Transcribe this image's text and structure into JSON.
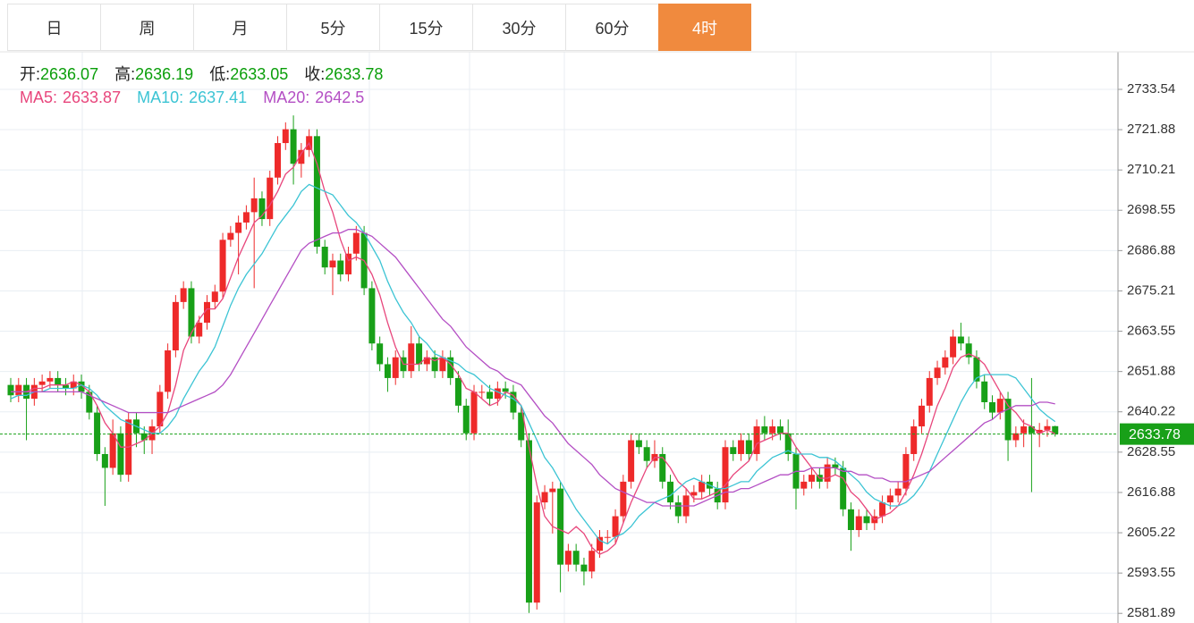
{
  "tabs": {
    "items": [
      "日",
      "周",
      "月",
      "5分",
      "15分",
      "30分",
      "60分",
      "4时"
    ],
    "active": 7
  },
  "chart_data": {
    "type": "candlestick",
    "info_labels": [
      "开:",
      "高:",
      "低:",
      "收:"
    ],
    "up_color": "#ee2a2a",
    "down_color": "#18a018",
    "ylim": [
      2579.1,
      2744.4
    ],
    "yticks": [
      2581.89,
      2593.55,
      2605.22,
      2616.88,
      2628.55,
      2640.22,
      2651.88,
      2663.55,
      2675.21,
      2686.88,
      2698.55,
      2710.21,
      2721.88,
      2733.54
    ],
    "grid": true,
    "open": [
      2648,
      2645,
      2648,
      2644,
      2648,
      2649,
      2650,
      2648,
      2647,
      2649,
      2646,
      2640,
      2628,
      2624,
      2634,
      2622,
      2638,
      2634,
      2632,
      2636,
      2646,
      2658,
      2672,
      2676,
      2662,
      2666,
      2672,
      2675,
      2690,
      2692,
      2695,
      2698,
      2702,
      2696,
      2708,
      2718,
      2722,
      2712,
      2716,
      2720,
      2688,
      2682,
      2684,
      2680,
      2686,
      2692,
      2676,
      2660,
      2654,
      2650,
      2656,
      2652,
      2660,
      2654,
      2656,
      2652,
      2656,
      2650,
      2642,
      2634,
      2646,
      2646,
      2644,
      2647,
      2646,
      2640,
      2632,
      2585,
      2614,
      2617,
      2618,
      2596,
      2600,
      2596,
      2594,
      2600,
      2604,
      2604,
      2610,
      2620,
      2632,
      2630,
      2626,
      2628,
      2620,
      2614,
      2610,
      2616,
      2617,
      2620,
      2618,
      2614,
      2630,
      2628,
      2632,
      2628,
      2636,
      2634,
      2636,
      2634,
      2628,
      2618,
      2620,
      2622,
      2620,
      2625,
      2624,
      2612,
      2606,
      2610,
      2608,
      2610,
      2614,
      2616,
      2618,
      2628,
      2636,
      2642,
      2650,
      2653,
      2656,
      2662,
      2660,
      2656,
      2649,
      2643,
      2640,
      2644,
      2632,
      2634,
      2636,
      2634,
      2635,
      2636.07
    ],
    "high": [
      2650,
      2650,
      2650,
      2650,
      2651,
      2652,
      2652,
      2650,
      2651,
      2651,
      2648,
      2642,
      2630,
      2638,
      2636,
      2640,
      2640,
      2636,
      2638,
      2648,
      2660,
      2674,
      2678,
      2678,
      2668,
      2674,
      2677,
      2692,
      2694,
      2697,
      2700,
      2708,
      2704,
      2710,
      2720,
      2724,
      2726,
      2718,
      2722,
      2722,
      2690,
      2686,
      2686,
      2688,
      2694,
      2694,
      2678,
      2662,
      2656,
      2658,
      2658,
      2665,
      2662,
      2658,
      2658,
      2658,
      2658,
      2652,
      2644,
      2648,
      2648,
      2648,
      2649,
      2649,
      2648,
      2642,
      2634,
      2616,
      2619,
      2620,
      2620,
      2602,
      2602,
      2598,
      2602,
      2606,
      2606,
      2612,
      2622,
      2634,
      2634,
      2632,
      2632,
      2630,
      2622,
      2616,
      2618,
      2619,
      2622,
      2622,
      2620,
      2632,
      2632,
      2634,
      2634,
      2638,
      2639,
      2638,
      2638,
      2638,
      2630,
      2622,
      2624,
      2624,
      2627,
      2627,
      2626,
      2614,
      2612,
      2612,
      2612,
      2616,
      2618,
      2620,
      2630,
      2638,
      2644,
      2652,
      2655,
      2658,
      2664,
      2666,
      2662,
      2658,
      2651,
      2645,
      2646,
      2646,
      2636,
      2638,
      2650,
      2637,
      2638,
      2636.19
    ],
    "low": [
      2643,
      2643,
      2632,
      2642,
      2646,
      2647,
      2646,
      2645,
      2645,
      2644,
      2638,
      2626,
      2613,
      2622,
      2620,
      2620,
      2630,
      2628,
      2628,
      2634,
      2644,
      2656,
      2670,
      2660,
      2660,
      2664,
      2670,
      2673,
      2688,
      2680,
      2693,
      2676,
      2694,
      2694,
      2706,
      2716,
      2706,
      2708,
      2714,
      2686,
      2680,
      2674,
      2678,
      2678,
      2684,
      2674,
      2658,
      2652,
      2646,
      2648,
      2650,
      2650,
      2652,
      2652,
      2650,
      2650,
      2648,
      2640,
      2632,
      2632,
      2644,
      2642,
      2642,
      2644,
      2638,
      2630,
      2582,
      2583,
      2612,
      2605,
      2588,
      2594,
      2594,
      2590,
      2592,
      2598,
      2602,
      2602,
      2608,
      2618,
      2628,
      2624,
      2624,
      2618,
      2612,
      2608,
      2608,
      2614,
      2615,
      2616,
      2612,
      2612,
      2626,
      2626,
      2626,
      2626,
      2632,
      2632,
      2632,
      2626,
      2612,
      2616,
      2618,
      2618,
      2618,
      2622,
      2610,
      2600,
      2604,
      2606,
      2606,
      2608,
      2612,
      2614,
      2616,
      2626,
      2634,
      2640,
      2648,
      2651,
      2654,
      2658,
      2654,
      2647,
      2641,
      2638,
      2638,
      2626,
      2630,
      2630,
      2617,
      2630,
      2633,
      2633.05
    ],
    "close": [
      2645,
      2648,
      2644,
      2648,
      2649,
      2650,
      2648,
      2647,
      2649,
      2646,
      2640,
      2628,
      2624,
      2634,
      2622,
      2638,
      2634,
      2632,
      2636,
      2646,
      2658,
      2672,
      2676,
      2662,
      2666,
      2672,
      2675,
      2690,
      2692,
      2695,
      2698,
      2702,
      2696,
      2708,
      2718,
      2722,
      2712,
      2716,
      2720,
      2688,
      2682,
      2684,
      2680,
      2686,
      2692,
      2676,
      2660,
      2654,
      2650,
      2656,
      2652,
      2660,
      2654,
      2656,
      2652,
      2656,
      2650,
      2642,
      2634,
      2646,
      2646,
      2644,
      2647,
      2646,
      2640,
      2632,
      2585,
      2614,
      2617,
      2618,
      2596,
      2600,
      2596,
      2594,
      2600,
      2604,
      2604,
      2610,
      2620,
      2632,
      2630,
      2626,
      2628,
      2620,
      2614,
      2610,
      2616,
      2617,
      2620,
      2618,
      2614,
      2630,
      2628,
      2632,
      2628,
      2636,
      2634,
      2636,
      2634,
      2628,
      2618,
      2620,
      2622,
      2620,
      2625,
      2624,
      2612,
      2606,
      2610,
      2608,
      2610,
      2614,
      2616,
      2618,
      2628,
      2636,
      2642,
      2650,
      2653,
      2656,
      2662,
      2660,
      2656,
      2649,
      2643,
      2640,
      2644,
      2632,
      2634,
      2636,
      2634,
      2635,
      2636.07,
      2633.78
    ],
    "series": [
      {
        "name": "MA5:",
        "color": "#e8467c",
        "values": [
          2646,
          2646,
          2646,
          2647,
          2647,
          2648,
          2648,
          2648,
          2649,
          2648,
          2646,
          2642,
          2637,
          2634,
          2630,
          2630,
          2631,
          2632,
          2634,
          2636,
          2640,
          2648,
          2658,
          2663,
          2667,
          2670,
          2670,
          2673,
          2679,
          2685,
          2690,
          2695,
          2697,
          2700,
          2704,
          2709,
          2711,
          2715,
          2718,
          2712,
          2704,
          2698,
          2690,
          2684,
          2685,
          2684,
          2680,
          2674,
          2666,
          2659,
          2654,
          2654,
          2654,
          2656,
          2655,
          2656,
          2654,
          2651,
          2647,
          2646,
          2644,
          2642,
          2643,
          2646,
          2645,
          2642,
          2630,
          2619,
          2610,
          2607,
          2606,
          2605,
          2607,
          2605,
          2601,
          2599,
          2600,
          2602,
          2608,
          2614,
          2619,
          2624,
          2627,
          2627,
          2624,
          2620,
          2618,
          2615,
          2615,
          2616,
          2617,
          2619,
          2622,
          2624,
          2626,
          2631,
          2632,
          2633,
          2634,
          2634,
          2630,
          2627,
          2624,
          2621,
          2621,
          2622,
          2621,
          2617,
          2615,
          2612,
          2609,
          2610,
          2611,
          2613,
          2617,
          2622,
          2628,
          2635,
          2642,
          2647,
          2653,
          2656,
          2657,
          2656,
          2654,
          2650,
          2646,
          2642,
          2640,
          2637,
          2636,
          2634,
          2635,
          2633.87
        ]
      },
      {
        "name": "MA10:",
        "color": "#3cc4d4",
        "values": [
          2644,
          2645,
          2645,
          2646,
          2646,
          2647,
          2647,
          2647,
          2647,
          2648,
          2647,
          2645,
          2642,
          2640,
          2638,
          2637,
          2636,
          2635,
          2634,
          2634,
          2636,
          2639,
          2644,
          2648,
          2652,
          2655,
          2659,
          2665,
          2671,
          2676,
          2680,
          2683,
          2686,
          2690,
          2694,
          2697,
          2700,
          2704,
          2706,
          2705,
          2704,
          2703,
          2700,
          2697,
          2695,
          2692,
          2688,
          2684,
          2678,
          2673,
          2669,
          2666,
          2662,
          2660,
          2657,
          2656,
          2655,
          2654,
          2652,
          2651,
          2649,
          2647,
          2646,
          2645,
          2644,
          2642,
          2637,
          2632,
          2627,
          2624,
          2620,
          2616,
          2612,
          2609,
          2606,
          2603,
          2602,
          2604,
          2605,
          2607,
          2610,
          2612,
          2614,
          2615,
          2616,
          2618,
          2620,
          2621,
          2620,
          2619,
          2618,
          2618,
          2619,
          2620,
          2620,
          2623,
          2625,
          2627,
          2628,
          2629,
          2628,
          2628,
          2628,
          2627,
          2627,
          2626,
          2624,
          2622,
          2620,
          2617,
          2615,
          2614,
          2613,
          2613,
          2614,
          2616,
          2619,
          2623,
          2628,
          2633,
          2638,
          2643,
          2647,
          2650,
          2651,
          2651,
          2651,
          2651,
          2650,
          2647,
          2644,
          2641,
          2639,
          2637.41
        ]
      },
      {
        "name": "MA20:",
        "color": "#b44fc4",
        "values": [
          2646,
          2646,
          2646,
          2646,
          2646,
          2646,
          2646,
          2646,
          2646,
          2646,
          2645,
          2644,
          2643,
          2642,
          2641,
          2640,
          2640,
          2640,
          2640,
          2640,
          2640,
          2641,
          2642,
          2643,
          2644,
          2645,
          2646,
          2648,
          2651,
          2655,
          2659,
          2663,
          2667,
          2671,
          2675,
          2679,
          2683,
          2687,
          2689,
          2690,
          2691,
          2692,
          2692,
          2693,
          2693,
          2692,
          2691,
          2689,
          2687,
          2685,
          2682,
          2679,
          2676,
          2673,
          2670,
          2667,
          2665,
          2662,
          2659,
          2657,
          2655,
          2653,
          2652,
          2650,
          2649,
          2648,
          2645,
          2642,
          2639,
          2637,
          2634,
          2631,
          2629,
          2627,
          2625,
          2622,
          2620,
          2618,
          2617,
          2616,
          2615,
          2614,
          2614,
          2613,
          2613,
          2613,
          2613,
          2613,
          2614,
          2615,
          2616,
          2617,
          2617,
          2618,
          2618,
          2619,
          2620,
          2621,
          2622,
          2622,
          2623,
          2623,
          2624,
          2624,
          2624,
          2624,
          2623,
          2623,
          2622,
          2622,
          2621,
          2621,
          2620,
          2620,
          2620,
          2621,
          2622,
          2623,
          2625,
          2627,
          2629,
          2631,
          2633,
          2635,
          2637,
          2638,
          2640,
          2641,
          2642,
          2642,
          2642,
          2643,
          2643,
          2642.5
        ]
      }
    ]
  }
}
